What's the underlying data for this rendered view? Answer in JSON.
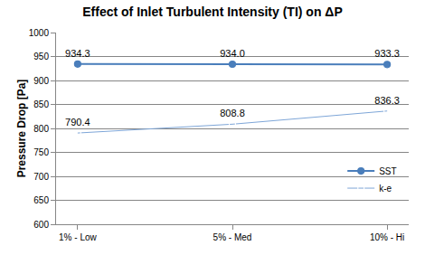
{
  "chart_data": {
    "type": "line",
    "title": "Effect of Inlet Turbulent Intensity (TI) on ΔP",
    "y_label": "Pressure Drop [Pa]",
    "categories": [
      "1% - Low",
      "5% - Med",
      "10% - Hi"
    ],
    "series": [
      {
        "name": "SST",
        "color": "#4a7ebb",
        "marker": "circle",
        "line_style": "solid",
        "values": [
          934.3,
          934.0,
          933.3
        ],
        "value_labels": [
          "934.3",
          "934.0",
          "933.3"
        ]
      },
      {
        "name": "k-e",
        "color": "#c0504d",
        "marker": "open circle",
        "line_style": "solid",
        "values": [
          790.4,
          808.8,
          836.3
        ],
        "value_labels": [
          "790.4",
          "808.8",
          "836.3"
        ]
      }
    ],
    "ylim": [
      600,
      1000
    ],
    "yticks": [
      600,
      650,
      700,
      750,
      800,
      850,
      900,
      950,
      1000
    ],
    "grid": true,
    "legend": "lower right",
    "data_labels": true
  }
}
